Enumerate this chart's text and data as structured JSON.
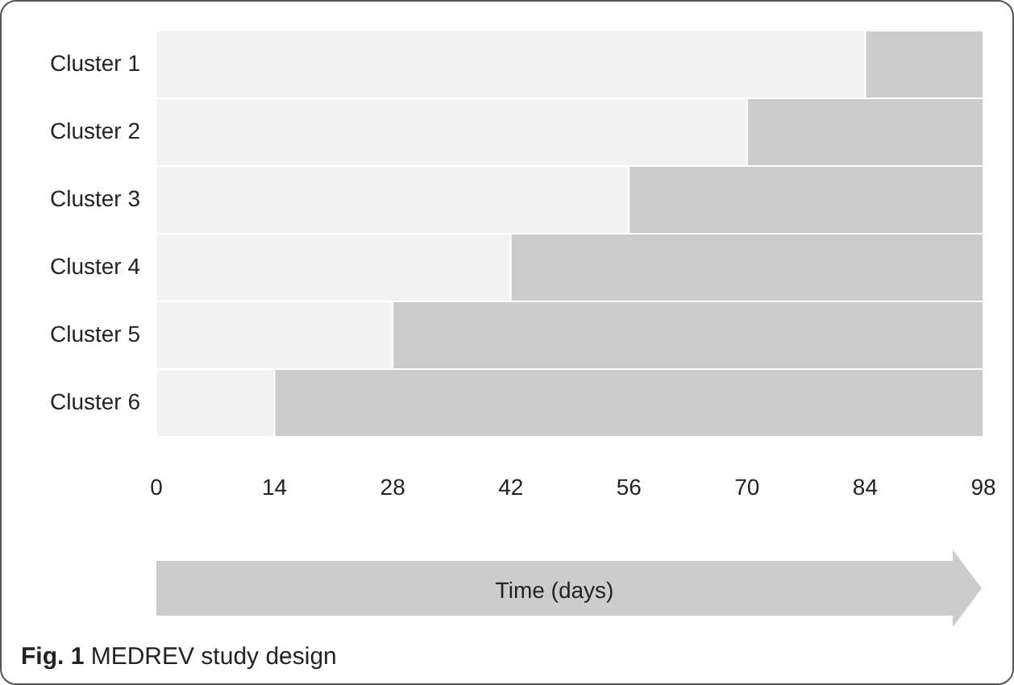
{
  "chart_data": {
    "type": "bar",
    "orientation": "horizontal",
    "stacked": true,
    "title": "Fig. 1 MEDREV study design",
    "xlabel": "Time (days)",
    "categories": [
      "Cluster 1",
      "Cluster 2",
      "Cluster 3",
      "Cluster 4",
      "Cluster 5",
      "Cluster 6"
    ],
    "series": [
      {
        "color": "#f2f2f2",
        "values": [
          84,
          70,
          56,
          42,
          28,
          14
        ]
      },
      {
        "color": "#cccccc",
        "values": [
          14,
          28,
          42,
          56,
          70,
          84
        ]
      }
    ],
    "xlim": [
      0,
      98
    ],
    "xticks": [
      0,
      14,
      28,
      42,
      56,
      70,
      84,
      98
    ],
    "legend": false
  }
}
